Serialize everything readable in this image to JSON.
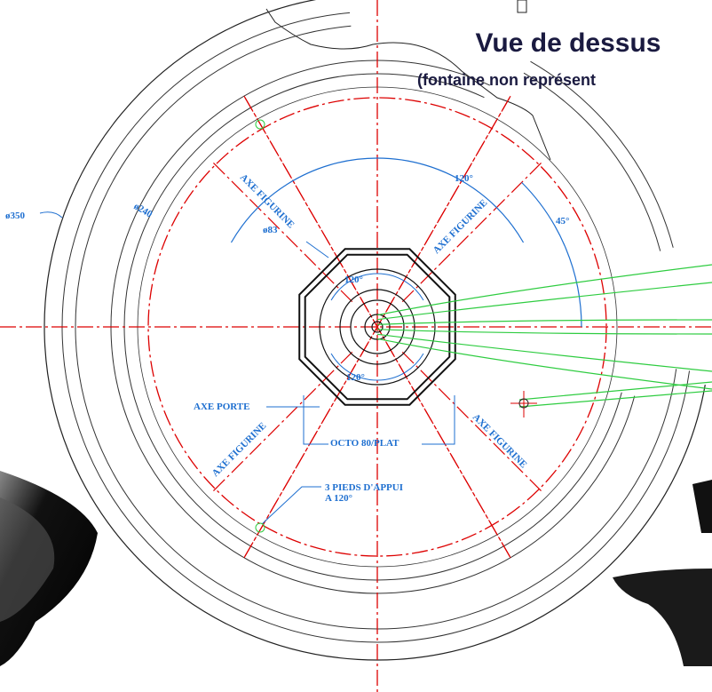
{
  "header": {
    "title": "Vue de dessus",
    "subtitle": "(fontaine non représent"
  },
  "dimensions": {
    "outer_diameter": "ø350",
    "ring_diameter": "ø240",
    "inner_diameter": "ø83",
    "angle_top": "120°",
    "angle_right": "45°",
    "angle_inner_top": "120°",
    "angle_inner_bottom": "120°",
    "octo": "OCTO 80/PLAT"
  },
  "labels": {
    "axe_figurine_top_left": "AXE FIGURINE",
    "axe_figurine_top_right": "AXE FIGURINE",
    "axe_figurine_bottom_left": "AXE FIGURINE",
    "axe_figurine_bottom_right": "AXE FIGURINE",
    "axe_porte": "AXE PORTE",
    "pieds_line1": "3 PIEDS D'APPUI",
    "pieds_line2": "A 120°"
  }
}
